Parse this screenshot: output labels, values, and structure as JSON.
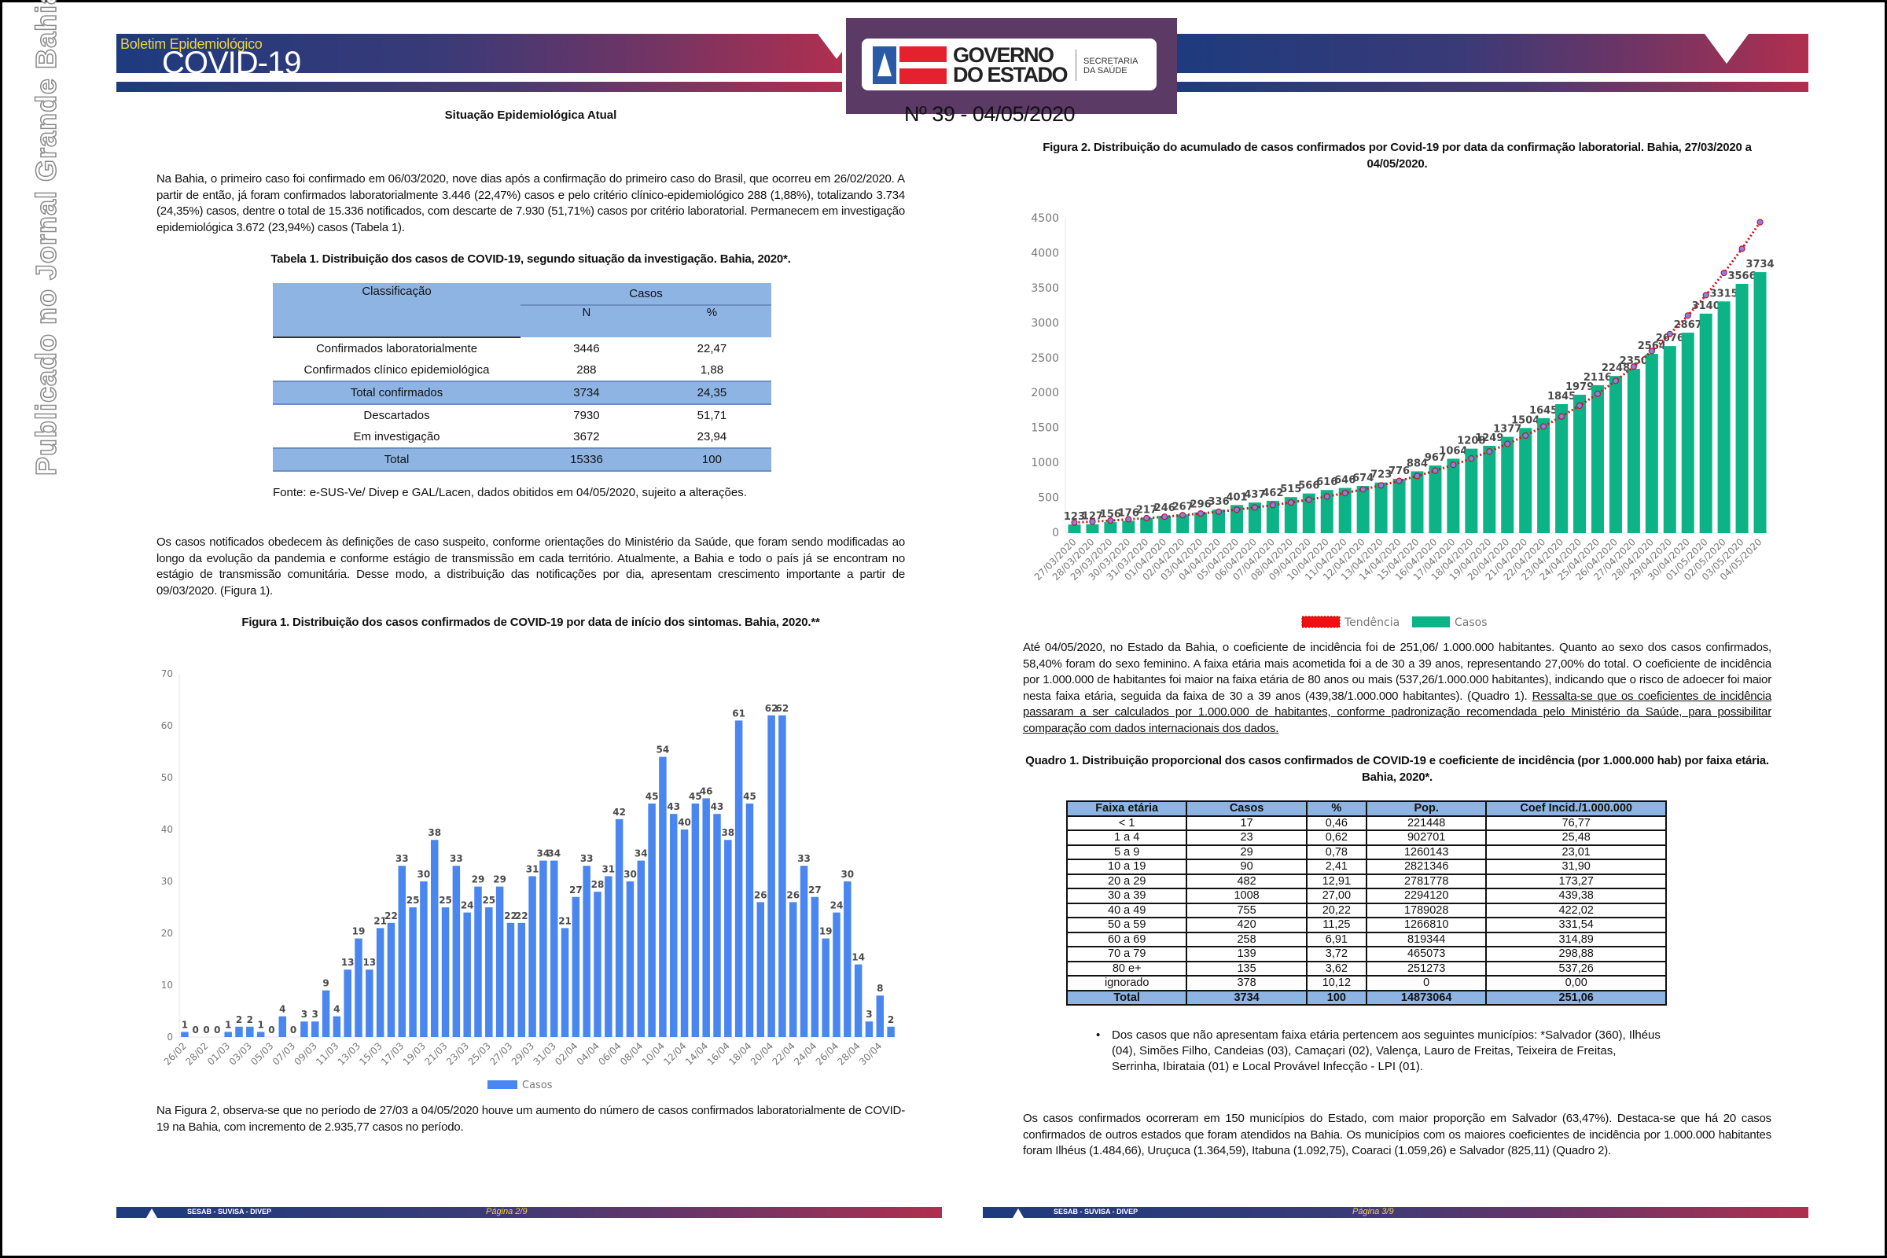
{
  "watermark": "Publicado no Jornal Grande Bahia",
  "header": {
    "boletim_label": "Boletim Epidemiológico",
    "covid_label": "COVID-19",
    "logo_line1": "GOVERNO",
    "logo_line2": "DO ESTADO",
    "secretaria_line1": "SECRETARIA",
    "secretaria_line2": "DA SAÚDE",
    "section_title": "Situação Epidemiológica Atual",
    "issue": "Nº 39 - 04/05/2020"
  },
  "colors": {
    "banner_blue": "#1d3b7e",
    "banner_red": "#b02f4f",
    "table_blue": "#8eb4e3",
    "fig1_bar": "#4a86f0",
    "fig2_bar": "#0bb386",
    "trend_red": "#cc1122"
  },
  "left": {
    "para1": "Na Bahia, o primeiro caso foi confirmado em 06/03/2020, nove dias após a confirmação do primeiro caso do Brasil, que ocorreu em 26/02/2020. A partir de então, já foram confirmados laboratorialmente 3.446 (22,47%) casos e pelo critério clínico-epidemiológico 288 (1,88%), totalizando 3.734 (24,35%) casos, dentre o total de 15.336 notificados, com descarte de 7.930 (51,71%) casos por critério laboratorial. Permanecem em investigação epidemiológica 3.672 (23,94%) casos (Tabela 1).",
    "table1_title": "Tabela 1. Distribuição dos casos de COVID-19, segundo situação da investigação. Bahia, 2020*.",
    "table1": {
      "col_class": "Classificação",
      "col_casos": "Casos",
      "col_n": "N",
      "col_pct": "%",
      "rows": [
        {
          "label": "Confirmados laboratorialmente",
          "n": "3446",
          "pct": "22,47",
          "highlight": false
        },
        {
          "label": "Confirmados clínico epidemiológica",
          "n": "288",
          "pct": "1,88",
          "highlight": false
        },
        {
          "label": "Total confirmados",
          "n": "3734",
          "pct": "24,35",
          "highlight": true
        },
        {
          "label": "Descartados",
          "n": "7930",
          "pct": "51,71",
          "highlight": false
        },
        {
          "label": "Em investigação",
          "n": "3672",
          "pct": "23,94",
          "highlight": false
        },
        {
          "label": "Total",
          "n": "15336",
          "pct": "100",
          "highlight": true
        }
      ]
    },
    "fonte": "Fonte: e-SUS-Ve/ Divep e GAL/Lacen, dados obitidos em 04/05/2020, sujeito a alterações.",
    "para2": "Os casos notificados obedecem às definições de caso suspeito, conforme orientações do Ministério da Saúde, que foram sendo modificadas ao longo da evolução da pandemia e conforme estágio de transmissão em cada território. Atualmente, a Bahia e todo o país já se encontram no estágio de transmissão comunitária. Desse modo, a distribuição das notificações por dia, apresentam crescimento importante a partir de 09/03/2020. (Figura 1).",
    "fig1_title": "Figura 1. Distribuição dos casos confirmados de COVID-19 por data de início dos sintomas. Bahia, 2020.**",
    "para3": "Na Figura 2, observa-se que no período de 27/03 a 04/05/2020 houve um aumento do número de casos confirmados laboratorialmente de COVID-19 na Bahia, com incremento de 2.935,77 casos no período.",
    "footer_org": "SESAB - SUVISA - DIVEP",
    "footer_page": "Página 2/9"
  },
  "right": {
    "fig2_title": "Figura 2. Distribuição do acumulado de casos confirmados por Covid-19 por data da confirmação laboratorial. Bahia, 27/03/2020 a 04/05/2020.",
    "para1": "Até 04/05/2020, no Estado da Bahia, o coeficiente de incidência foi de 251,06/ 1.000.000 habitantes. Quanto ao sexo dos casos confirmados, 58,40% foram do sexo feminino. A faixa etária mais acometida foi a de 30 a 39 anos, representando 27,00% do total. O coeficiente de incidência por 1.000.000 de habitantes foi maior na faixa etária de 80 anos ou mais (537,26/1.000.000 habitantes), indicando que o risco de adoecer foi maior nesta faixa etária, seguida da faixa de 30 a 39 anos (439,38/1.000.000 habitantes). (Quadro 1). ",
    "para1_underlined": "Ressalta-se que os coeficientes de incidência passaram a ser calculados por 1.000.000 de habitantes, conforme padronização recomendada pelo Ministério da Saúde, para possibilitar comparação com dados internacionais dos dados.",
    "quadro1_title": "Quadro 1. Distribuição proporcional dos casos confirmados de COVID-19 e coeficiente de incidência (por 1.000.000 hab) por faixa etária. Bahia, 2020*.",
    "quadro1": {
      "headers": [
        "Faixa etária",
        "Casos",
        "%",
        "Pop.",
        "Coef Incid./1.000.000"
      ],
      "rows": [
        [
          "< 1",
          "17",
          "0,46",
          "221448",
          "76,77"
        ],
        [
          "1 a 4",
          "23",
          "0,62",
          "902701",
          "25,48"
        ],
        [
          "5 a 9",
          "29",
          "0,78",
          "1260143",
          "23,01"
        ],
        [
          "10 a 19",
          "90",
          "2,41",
          "2821346",
          "31,90"
        ],
        [
          "20 a 29",
          "482",
          "12,91",
          "2781778",
          "173,27"
        ],
        [
          "30 a 39",
          "1008",
          "27,00",
          "2294120",
          "439,38"
        ],
        [
          "40 a 49",
          "755",
          "20,22",
          "1789028",
          "422,02"
        ],
        [
          "50 a 59",
          "420",
          "11,25",
          "1266810",
          "331,54"
        ],
        [
          "60 a 69",
          "258",
          "6,91",
          "819344",
          "314,89"
        ],
        [
          "70 a 79",
          "139",
          "3,72",
          "465073",
          "298,88"
        ],
        [
          "80 e+",
          "135",
          "3,62",
          "251273",
          "537,26"
        ],
        [
          "ignorado",
          "378",
          "10,12",
          "0",
          "0,00"
        ]
      ],
      "total": [
        "Total",
        "3734",
        "100",
        "14873064",
        "251,06"
      ]
    },
    "footnote": "Dos casos que não apresentam faixa etária pertencem aos seguintes municípios: *Salvador (360), Ilhéus (04), Simões Filho, Candeias (03), Camaçari (02), Valença, Lauro de Freitas, Teixeira de Freitas, Serrinha, Ibirataia (01) e Local Provável Infecção - LPI (01).",
    "para2": "Os casos confirmados ocorreram em 150 municípios do Estado, com maior proporção em Salvador (63,47%). Destaca-se que há 20 casos confirmados de outros estados que foram atendidos na Bahia. Os municípios com os maiores coeficientes de incidência por 1.000.000 habitantes foram Ilhéus (1.484,66), Uruçuca (1.364,59), Itabuna (1.092,75), Coaraci (1.059,26) e Salvador (825,11) (Quadro 2).",
    "footer_org": "SESAB - SUVISA - DIVEP",
    "footer_page": "Página 3/9"
  },
  "chart_data": [
    {
      "type": "bar",
      "title": "Figura 1. Distribuição dos casos confirmados de COVID-19 por data de início dos sintomas. Bahia, 2020.**",
      "categories": [
        "26/02",
        "27/02",
        "28/02",
        "29/02",
        "01/03",
        "02/03",
        "03/03",
        "04/03",
        "05/03",
        "06/03",
        "07/03",
        "08/03",
        "09/03",
        "10/03",
        "11/03",
        "12/03",
        "13/03",
        "14/03",
        "15/03",
        "16/03",
        "17/03",
        "18/03",
        "19/03",
        "20/03",
        "21/03",
        "22/03",
        "23/03",
        "24/03",
        "25/03",
        "26/03",
        "27/03",
        "28/03",
        "29/03",
        "30/03",
        "31/03",
        "01/04",
        "02/04",
        "03/04",
        "04/04",
        "05/04",
        "06/04",
        "07/04",
        "08/04",
        "09/04",
        "10/04",
        "11/04",
        "12/04",
        "13/04",
        "14/04",
        "15/04",
        "16/04",
        "17/04",
        "18/04",
        "19/04",
        "20/04",
        "21/04",
        "22/04",
        "23/04",
        "24/04",
        "25/04",
        "26/04",
        "27/04",
        "28/04",
        "29/04",
        "30/04",
        "01/05"
      ],
      "series": [
        {
          "name": "Casos",
          "values": [
            1,
            0,
            0,
            0,
            1,
            2,
            2,
            1,
            0,
            4,
            0,
            3,
            3,
            9,
            4,
            13,
            19,
            13,
            21,
            22,
            33,
            25,
            30,
            38,
            25,
            33,
            24,
            29,
            25,
            29,
            22,
            22,
            31,
            34,
            34,
            21,
            27,
            33,
            28,
            31,
            42,
            30,
            34,
            45,
            54,
            43,
            40,
            45,
            46,
            43,
            38,
            61,
            45,
            26,
            62,
            62,
            26,
            33,
            27,
            19,
            24,
            30,
            14,
            3,
            8,
            2
          ]
        }
      ],
      "ylim": [
        0,
        70
      ],
      "yticks": [
        0,
        10,
        20,
        30,
        40,
        50,
        60,
        70
      ],
      "data_labels": true,
      "legend": "bottom",
      "grid": false
    },
    {
      "type": "bar",
      "title": "Figura 2. Distribuição do acumulado de casos confirmados por Covid-19 por data da confirmação laboratorial. Bahia, 27/03/2020 a 04/05/2020.",
      "categories": [
        "27/03/2020",
        "28/03/2020",
        "29/03/2020",
        "30/03/2020",
        "31/03/2020",
        "01/04/2020",
        "02/04/2020",
        "03/04/2020",
        "04/04/2020",
        "05/04/2020",
        "06/04/2020",
        "07/04/2020",
        "08/04/2020",
        "09/04/2020",
        "10/04/2020",
        "11/04/2020",
        "12/04/2020",
        "13/04/2020",
        "14/04/2020",
        "15/04/2020",
        "16/04/2020",
        "17/04/2020",
        "18/04/2020",
        "19/04/2020",
        "20/04/2020",
        "21/04/2020",
        "22/04/2020",
        "23/04/2020",
        "24/04/2020",
        "25/04/2020",
        "26/04/2020",
        "27/04/2020",
        "28/04/2020",
        "29/04/2020",
        "30/04/2020",
        "01/05/2020",
        "02/05/2020",
        "03/05/2020",
        "04/05/2020"
      ],
      "series": [
        {
          "name": "Casos",
          "type": "bar",
          "values": [
            123,
            127,
            156,
            176,
            217,
            246,
            267,
            296,
            336,
            401,
            437,
            462,
            515,
            566,
            616,
            646,
            674,
            723,
            776,
            884,
            967,
            1064,
            1208,
            1249,
            1377,
            1504,
            1645,
            1845,
            1979,
            2116,
            2248,
            2350,
            2564,
            2676,
            2867,
            3140,
            3315,
            3566,
            3734
          ]
        },
        {
          "name": "Tendência",
          "type": "line",
          "style": "dotted",
          "values": [
            150,
            164,
            179,
            196,
            214,
            234,
            256,
            280,
            306,
            335,
            366,
            400,
            438,
            478,
            523,
            572,
            625,
            683,
            747,
            817,
            893,
            976,
            1068,
            1167,
            1276,
            1395,
            1525,
            1668,
            1823,
            1993,
            2179,
            2382,
            2605,
            2848,
            3113,
            3404,
            3722,
            4069,
            4448
          ]
        }
      ],
      "ylim": [
        0,
        4500
      ],
      "yticks": [
        0,
        500,
        1000,
        1500,
        2000,
        2500,
        3000,
        3500,
        4000,
        4500
      ],
      "data_labels": true,
      "legend": "bottom",
      "grid": false
    }
  ]
}
